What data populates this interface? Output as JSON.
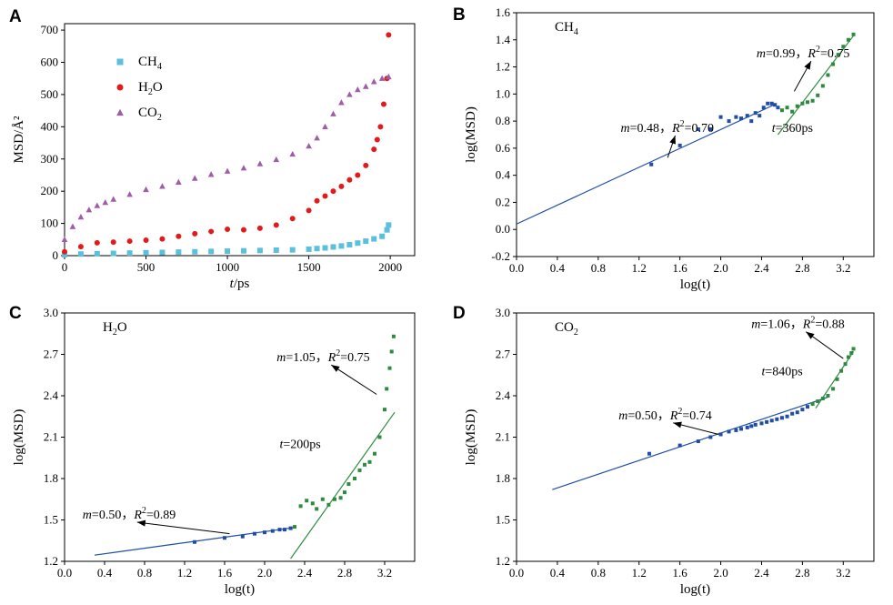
{
  "colors": {
    "ch4": "#5bc0de",
    "h2o": "#e31a1c",
    "co2": "#a05ca8",
    "blue": "#1f4ea8",
    "green": "#2e8b3e"
  },
  "chart_data": [
    {
      "panel": "A",
      "type": "scatter",
      "xlabel": [
        "t",
        "/ps"
      ],
      "ylabel": "MSD/Å²",
      "xlim": [
        0,
        2150
      ],
      "ylim": [
        0,
        720
      ],
      "xticks": [
        "0",
        "500",
        "1000",
        "1500",
        "2000"
      ],
      "yticks": [
        "0",
        "100",
        "200",
        "300",
        "400",
        "500",
        "600",
        "700"
      ],
      "legend_position": "top-left",
      "series": [
        {
          "name": "CH4",
          "display": [
            "CH",
            "4"
          ],
          "marker": "square",
          "color": "#5bc0de",
          "x": [
            0,
            100,
            200,
            300,
            400,
            500,
            600,
            700,
            800,
            900,
            1000,
            1100,
            1200,
            1300,
            1400,
            1500,
            1550,
            1600,
            1650,
            1700,
            1750,
            1800,
            1850,
            1900,
            1950,
            1980,
            1990
          ],
          "y": [
            3,
            5,
            6,
            7,
            8,
            9,
            10,
            11,
            12,
            13,
            14,
            15,
            16,
            17,
            18,
            20,
            22,
            24,
            27,
            30,
            34,
            39,
            45,
            52,
            60,
            80,
            95
          ]
        },
        {
          "name": "H2O",
          "display": [
            "H",
            "2",
            "O"
          ],
          "marker": "circle",
          "color": "#e31a1c",
          "x": [
            0,
            100,
            200,
            300,
            400,
            500,
            600,
            700,
            800,
            900,
            1000,
            1100,
            1200,
            1300,
            1400,
            1500,
            1550,
            1600,
            1650,
            1700,
            1750,
            1800,
            1850,
            1900,
            1920,
            1940,
            1960,
            1980,
            1990
          ],
          "y": [
            12,
            28,
            40,
            42,
            45,
            48,
            52,
            60,
            68,
            75,
            82,
            80,
            85,
            95,
            115,
            140,
            170,
            185,
            200,
            215,
            235,
            250,
            280,
            330,
            360,
            400,
            470,
            550,
            685
          ]
        },
        {
          "name": "CO2",
          "display": [
            "CO",
            "2"
          ],
          "marker": "triangle",
          "color": "#a05ca8",
          "x": [
            0,
            50,
            100,
            150,
            200,
            250,
            300,
            400,
            500,
            600,
            700,
            800,
            900,
            1000,
            1100,
            1200,
            1300,
            1400,
            1500,
            1550,
            1600,
            1650,
            1700,
            1750,
            1800,
            1850,
            1900,
            1950,
            1990
          ],
          "y": [
            50,
            90,
            120,
            142,
            155,
            165,
            175,
            190,
            205,
            215,
            228,
            240,
            252,
            262,
            272,
            285,
            298,
            315,
            340,
            365,
            400,
            440,
            475,
            500,
            515,
            525,
            540,
            550,
            555
          ]
        }
      ]
    },
    {
      "panel": "B",
      "type": "scatter",
      "title": [
        "CH",
        "4"
      ],
      "xlabel": "log(t)",
      "ylabel": "log(MSD)",
      "xlim": [
        0,
        3.5
      ],
      "ylim": [
        -0.2,
        1.6
      ],
      "xticks": [
        "0.0",
        "0.4",
        "0.8",
        "1.2",
        "1.6",
        "2.0",
        "2.4",
        "2.8",
        "3.2"
      ],
      "yticks": [
        "-0.2",
        "0.0",
        "0.2",
        "0.4",
        "0.6",
        "0.8",
        "1.0",
        "1.2",
        "1.4",
        "1.6"
      ],
      "fit_lines": [
        {
          "x": [
            0,
            2.55
          ],
          "y": [
            0.04,
            0.93
          ],
          "color": "blue"
        },
        {
          "x": [
            2.56,
            3.3
          ],
          "y": [
            0.7,
            1.43
          ],
          "color": "green"
        }
      ],
      "points_blue": {
        "x": [
          1.32,
          1.6,
          1.78,
          1.9,
          2.0,
          2.08,
          2.15,
          2.2,
          2.26,
          2.3,
          2.34,
          2.38,
          2.42,
          2.46,
          2.5,
          2.53,
          2.56
        ],
        "y": [
          0.48,
          0.62,
          0.74,
          0.74,
          0.83,
          0.8,
          0.83,
          0.82,
          0.84,
          0.8,
          0.86,
          0.84,
          0.9,
          0.93,
          0.93,
          0.92,
          0.9
        ]
      },
      "points_green": {
        "x": [
          2.6,
          2.65,
          2.7,
          2.75,
          2.8,
          2.85,
          2.9,
          2.95,
          3.0,
          3.05,
          3.1,
          3.15,
          3.2,
          3.25,
          3.3
        ],
        "y": [
          0.88,
          0.9,
          0.87,
          0.91,
          0.93,
          0.94,
          0.95,
          0.99,
          1.06,
          1.14,
          1.22,
          1.29,
          1.35,
          1.4,
          1.44
        ]
      },
      "annotations": [
        {
          "text": [
            "m",
            "=0.48，",
            "R",
            "2",
            "=0.70"
          ],
          "at": [
            1.02,
            0.72
          ],
          "arrow_to": [
            1.48,
            0.53
          ]
        },
        {
          "text": [
            "m",
            "=0.99，",
            "R",
            "2",
            "=0.75"
          ],
          "at": [
            2.35,
            1.27
          ],
          "arrow_to": [
            2.72,
            1.02
          ]
        },
        {
          "text": [
            "t",
            "=360ps"
          ],
          "at": [
            2.5,
            0.72
          ]
        }
      ]
    },
    {
      "panel": "C",
      "type": "scatter",
      "title": [
        "H",
        "2",
        "O"
      ],
      "xlabel": "log(t)",
      "ylabel": "log(MSD)",
      "xlim": [
        0,
        3.5
      ],
      "ylim": [
        1.2,
        3.0
      ],
      "xticks": [
        "0.0",
        "0.4",
        "0.8",
        "1.2",
        "1.6",
        "2.0",
        "2.4",
        "2.8",
        "3.2"
      ],
      "yticks": [
        "1.2",
        "1.5",
        "1.8",
        "2.1",
        "2.4",
        "2.7",
        "3.0"
      ],
      "fit_lines": [
        {
          "x": [
            0.3,
            2.3
          ],
          "y": [
            1.245,
            1.445
          ],
          "color": "blue"
        },
        {
          "x": [
            2.26,
            3.3
          ],
          "y": [
            1.22,
            2.28
          ],
          "color": "green"
        }
      ],
      "points_blue": {
        "x": [
          1.3,
          1.6,
          1.78,
          1.9,
          2.0,
          2.08,
          2.15,
          2.2,
          2.26
        ],
        "y": [
          1.34,
          1.37,
          1.38,
          1.4,
          1.41,
          1.42,
          1.43,
          1.43,
          1.44
        ]
      },
      "points_green": {
        "x": [
          2.3,
          2.36,
          2.42,
          2.48,
          2.52,
          2.58,
          2.64,
          2.7,
          2.76,
          2.8,
          2.84,
          2.9,
          2.95,
          3.0,
          3.05,
          3.1,
          3.15,
          3.2,
          3.22,
          3.25,
          3.27,
          3.29
        ],
        "y": [
          1.45,
          1.6,
          1.64,
          1.62,
          1.58,
          1.65,
          1.61,
          1.65,
          1.66,
          1.7,
          1.76,
          1.8,
          1.86,
          1.9,
          1.92,
          1.98,
          2.1,
          2.3,
          2.45,
          2.6,
          2.72,
          2.83
        ]
      },
      "annotations": [
        {
          "text": [
            "m",
            "=0.50，",
            "R",
            "2",
            "=0.89"
          ],
          "at": [
            0.18,
            1.51
          ],
          "arrow_to": [
            1.65,
            1.4
          ]
        },
        {
          "text": [
            "m",
            "=1.05，",
            "R",
            "2",
            "=0.75"
          ],
          "at": [
            2.12,
            2.65
          ],
          "arrow_to": [
            3.12,
            2.41
          ]
        },
        {
          "text": [
            "t",
            "=200ps"
          ],
          "at": [
            2.15,
            2.02
          ]
        }
      ]
    },
    {
      "panel": "D",
      "type": "scatter",
      "title": [
        "CO",
        "2"
      ],
      "xlabel": "log(t)",
      "ylabel": "log(MSD)",
      "xlim": [
        0,
        3.5
      ],
      "ylim": [
        1.2,
        3.0
      ],
      "xticks": [
        "0.0",
        "0.4",
        "0.8",
        "1.2",
        "1.6",
        "2.0",
        "2.4",
        "2.8",
        "3.2"
      ],
      "yticks": [
        "1.2",
        "1.5",
        "1.8",
        "2.1",
        "2.4",
        "2.7",
        "3.0"
      ],
      "fit_lines": [
        {
          "x": [
            0.35,
            3.05
          ],
          "y": [
            1.72,
            2.39
          ],
          "color": "blue"
        },
        {
          "x": [
            2.93,
            3.3
          ],
          "y": [
            2.31,
            2.72
          ],
          "color": "green"
        }
      ],
      "points_blue": {
        "x": [
          1.3,
          1.6,
          1.78,
          1.9,
          2.0,
          2.08,
          2.15,
          2.2,
          2.26,
          2.3,
          2.34,
          2.4,
          2.45,
          2.5,
          2.55,
          2.6,
          2.65,
          2.7,
          2.75,
          2.8,
          2.85
        ],
        "y": [
          1.98,
          2.04,
          2.07,
          2.1,
          2.12,
          2.14,
          2.15,
          2.16,
          2.17,
          2.18,
          2.19,
          2.2,
          2.21,
          2.22,
          2.23,
          2.24,
          2.25,
          2.27,
          2.28,
          2.3,
          2.32
        ]
      },
      "points_green": {
        "x": [
          2.9,
          2.95,
          3.0,
          3.05,
          3.1,
          3.14,
          3.18,
          3.22,
          3.25,
          3.28,
          3.3
        ],
        "y": [
          2.34,
          2.36,
          2.38,
          2.4,
          2.45,
          2.52,
          2.58,
          2.63,
          2.68,
          2.71,
          2.74
        ]
      },
      "annotations": [
        {
          "text": [
            "m",
            "=0.50，",
            "R",
            "2",
            "=0.74"
          ],
          "at": [
            1.0,
            2.23
          ],
          "arrow_to": [
            1.98,
            2.12
          ]
        },
        {
          "text": [
            "m",
            "=1.06，",
            "R",
            "2",
            "=0.88"
          ],
          "at": [
            2.3,
            2.89
          ],
          "arrow_to": [
            3.2,
            2.67
          ]
        },
        {
          "text": [
            "t",
            "=840ps"
          ],
          "at": [
            2.4,
            2.55
          ]
        }
      ]
    }
  ]
}
